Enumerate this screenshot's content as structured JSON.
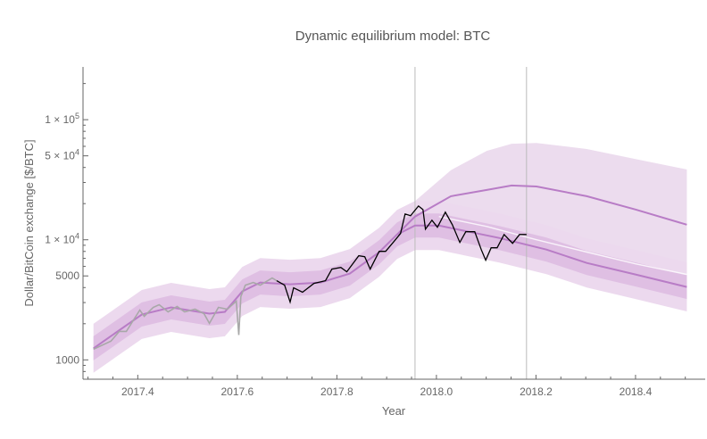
{
  "chart_data": {
    "type": "line",
    "title": "Dynamic equilibrium model: BTC",
    "xlabel": "Year",
    "ylabel": "Dollar/BitCoin exchange [$/BTC]",
    "xlim": [
      2017.29,
      2018.54
    ],
    "ylim": [
      690,
      275000
    ],
    "yscale": "log",
    "grid": false,
    "x_ticks": [
      {
        "value": 2017.4,
        "label": "2017.4"
      },
      {
        "value": 2017.6,
        "label": "2017.6"
      },
      {
        "value": 2017.8,
        "label": "2017.8"
      },
      {
        "value": 2018.0,
        "label": "2018.0"
      },
      {
        "value": 2018.2,
        "label": "2018.2"
      },
      {
        "value": 2018.4,
        "label": "2018.4"
      }
    ],
    "y_ticks": [
      {
        "value": 1000,
        "label": "1000"
      },
      {
        "value": 5000,
        "label": "5000"
      },
      {
        "value": 10000,
        "mantissa": "1 × 10",
        "exp": "4"
      },
      {
        "value": 50000,
        "mantissa": "5 × 10",
        "exp": "4"
      },
      {
        "value": 100000,
        "mantissa": "1 × 10",
        "exp": "5"
      }
    ],
    "vertical_lines": [
      2017.957,
      2018.181
    ],
    "colors": {
      "model": "#b87cc6",
      "band_inner": "#dfbfe3",
      "band_outer": "#ecd9ee",
      "forecast_band": "#ecdcee",
      "price_early": "#a8a8a8",
      "price_recent": "#000000",
      "axis": "#666666"
    },
    "band_factors": {
      "inner": 1.26,
      "outer": 1.6
    },
    "model_center": {
      "x": [
        2017.311,
        2017.408,
        2017.467,
        2017.544,
        2017.575,
        2017.61,
        2017.646,
        2017.706,
        2017.767,
        2017.826,
        2017.885,
        2017.921,
        2017.957,
        2018.005,
        2018.065,
        2018.126,
        2018.221,
        2018.302,
        2018.4,
        2018.503
      ],
      "y": [
        1248,
        2387,
        2735,
        2427,
        2512,
        3715,
        4406,
        4262,
        4406,
        5230,
        7880,
        11070,
        13140,
        13140,
        11660,
        10350,
        8290,
        6410,
        5140,
        4050
      ]
    },
    "model_upper": {
      "x": [
        2017.921,
        2017.957,
        2018.029,
        2018.101,
        2018.151,
        2018.201,
        2018.302,
        2018.4,
        2018.503
      ],
      "y": [
        11070,
        15600,
        23070,
        26000,
        28300,
        27800,
        23070,
        17860,
        13360
      ]
    },
    "model_faint": {
      "x": [
        2018.005,
        2018.101,
        2018.201,
        2018.302,
        2018.4,
        2018.503
      ],
      "y": [
        15600,
        12900,
        10000,
        7900,
        6300,
        5140
      ]
    },
    "forecast_upper_envelope": {
      "x": [
        2017.921,
        2017.957,
        2018.029,
        2018.101,
        2018.151,
        2018.201,
        2018.302,
        2018.4,
        2018.503
      ],
      "y": [
        14000,
        21000,
        38000,
        55000,
        63000,
        64000,
        57000,
        47000,
        38500
      ]
    },
    "price_early": {
      "x": [
        2017.311,
        2017.346,
        2017.363,
        2017.377,
        2017.404,
        2017.413,
        2017.431,
        2017.443,
        2017.461,
        2017.479,
        2017.494,
        2017.515,
        2017.533,
        2017.544,
        2017.562,
        2017.58,
        2017.598,
        2017.603,
        2017.607,
        2017.616,
        2017.632,
        2017.646,
        2017.67,
        2017.679
      ],
      "y": [
        1227,
        1431,
        1726,
        1726,
        2600,
        2306,
        2735,
        2878,
        2512,
        2780,
        2512,
        2642,
        2427,
        2012,
        2735,
        2642,
        3083,
        1611,
        3357,
        4190,
        4406,
        4190,
        4800,
        4562
      ]
    },
    "price_recent": {
      "x": [
        2017.679,
        2017.695,
        2017.706,
        2017.713,
        2017.731,
        2017.754,
        2017.777,
        2017.79,
        2017.808,
        2017.82,
        2017.844,
        2017.856,
        2017.867,
        2017.885,
        2017.898,
        2017.916,
        2017.928,
        2017.937,
        2017.948,
        2017.964,
        2017.973,
        2017.978,
        2017.991,
        2018.002,
        2018.018,
        2018.032,
        2018.047,
        2018.059,
        2018.077,
        2018.09,
        2018.099,
        2018.11,
        2018.122,
        2018.136,
        2018.153,
        2018.167,
        2018.181
      ],
      "y": [
        4562,
        4190,
        3030,
        3981,
        3656,
        4335,
        4562,
        5700,
        5890,
        5410,
        7360,
        7230,
        5700,
        8010,
        8010,
        9840,
        11270,
        16400,
        15850,
        19100,
        17860,
        12270,
        14550,
        12700,
        16980,
        13360,
        9500,
        11660,
        11660,
        8290,
        6760,
        8570,
        8570,
        11070,
        9340,
        11070,
        11070
      ]
    }
  }
}
